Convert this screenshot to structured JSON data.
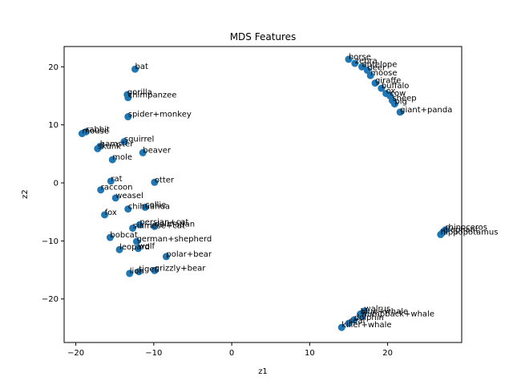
{
  "chart_data": {
    "type": "scatter",
    "title": "MDS Features",
    "xlabel": "z1",
    "ylabel": "z2",
    "xlim": [
      -21.5,
      29.5
    ],
    "ylim": [
      -27.5,
      23.5
    ],
    "xticks": [
      -20,
      -10,
      0,
      10,
      20
    ],
    "yticks": [
      -20,
      -10,
      0,
      10,
      20
    ],
    "grid": false,
    "point_color": "#1f77b4",
    "points": [
      {
        "label": "horse",
        "x": 15.0,
        "y": 21.3
      },
      {
        "label": "zebra",
        "x": 15.8,
        "y": 20.6
      },
      {
        "label": "antelope",
        "x": 16.7,
        "y": 20.0
      },
      {
        "label": "deer",
        "x": 17.4,
        "y": 19.4
      },
      {
        "label": "moose",
        "x": 17.8,
        "y": 18.5
      },
      {
        "label": "giraffe",
        "x": 18.4,
        "y": 17.2
      },
      {
        "label": "buffalo",
        "x": 19.2,
        "y": 16.3
      },
      {
        "label": "ox",
        "x": 19.8,
        "y": 15.4
      },
      {
        "label": "cow",
        "x": 20.3,
        "y": 15.0
      },
      {
        "label": "sheep",
        "x": 20.6,
        "y": 14.2
      },
      {
        "label": "pig",
        "x": 20.9,
        "y": 13.6
      },
      {
        "label": "giant+panda",
        "x": 21.6,
        "y": 12.2
      },
      {
        "label": "bat",
        "x": -12.4,
        "y": 19.6
      },
      {
        "label": "gorilla",
        "x": -13.4,
        "y": 15.2
      },
      {
        "label": "chimpanzee",
        "x": -13.3,
        "y": 14.7
      },
      {
        "label": "spider+monkey",
        "x": -13.3,
        "y": 11.4
      },
      {
        "label": "rabbit",
        "x": -18.7,
        "y": 8.8
      },
      {
        "label": "mouse",
        "x": -19.2,
        "y": 8.5
      },
      {
        "label": "squirrel",
        "x": -13.8,
        "y": 7.1
      },
      {
        "label": "hamster",
        "x": -16.9,
        "y": 6.3
      },
      {
        "label": "skunk",
        "x": -17.2,
        "y": 5.9
      },
      {
        "label": "beaver",
        "x": -11.4,
        "y": 5.2
      },
      {
        "label": "mole",
        "x": -15.3,
        "y": 4.0
      },
      {
        "label": "rat",
        "x": -15.5,
        "y": 0.3
      },
      {
        "label": "otter",
        "x": -9.9,
        "y": 0.1
      },
      {
        "label": "raccoon",
        "x": -16.8,
        "y": -1.2
      },
      {
        "label": "weasel",
        "x": -14.9,
        "y": -2.6
      },
      {
        "label": "collie",
        "x": -11.1,
        "y": -4.2
      },
      {
        "label": "chihuahua",
        "x": -13.3,
        "y": -4.5
      },
      {
        "label": "fox",
        "x": -16.3,
        "y": -5.5
      },
      {
        "label": "persian+cat",
        "x": -11.8,
        "y": -7.2
      },
      {
        "label": "dalmatian",
        "x": -9.9,
        "y": -7.5
      },
      {
        "label": "siamese+cat",
        "x": -12.7,
        "y": -7.8
      },
      {
        "label": "bobcat",
        "x": -15.6,
        "y": -9.4
      },
      {
        "label": "german+shepherd",
        "x": -12.2,
        "y": -10.1
      },
      {
        "label": "wolf",
        "x": -12.0,
        "y": -11.3
      },
      {
        "label": "leopard",
        "x": -14.4,
        "y": -11.5
      },
      {
        "label": "polar+bear",
        "x": -8.4,
        "y": -12.7
      },
      {
        "label": "lion",
        "x": -13.1,
        "y": -15.6
      },
      {
        "label": "tiger",
        "x": -11.9,
        "y": -15.3
      },
      {
        "label": "grizzly+bear",
        "x": -9.9,
        "y": -15.1
      },
      {
        "label": "rhinoceros",
        "x": 27.4,
        "y": -8.1
      },
      {
        "label": "elephant",
        "x": 27.1,
        "y": -8.5
      },
      {
        "label": "hippopotamus",
        "x": 26.8,
        "y": -8.9
      },
      {
        "label": "walrus",
        "x": 17.0,
        "y": -22.1
      },
      {
        "label": "blue+whale",
        "x": 16.5,
        "y": -22.6
      },
      {
        "label": "humpback+whale",
        "x": 16.7,
        "y": -23.0
      },
      {
        "label": "dolphin",
        "x": 15.7,
        "y": -23.6
      },
      {
        "label": "seal",
        "x": 15.0,
        "y": -24.2
      },
      {
        "label": "killer+whale",
        "x": 14.1,
        "y": -24.9
      }
    ]
  }
}
